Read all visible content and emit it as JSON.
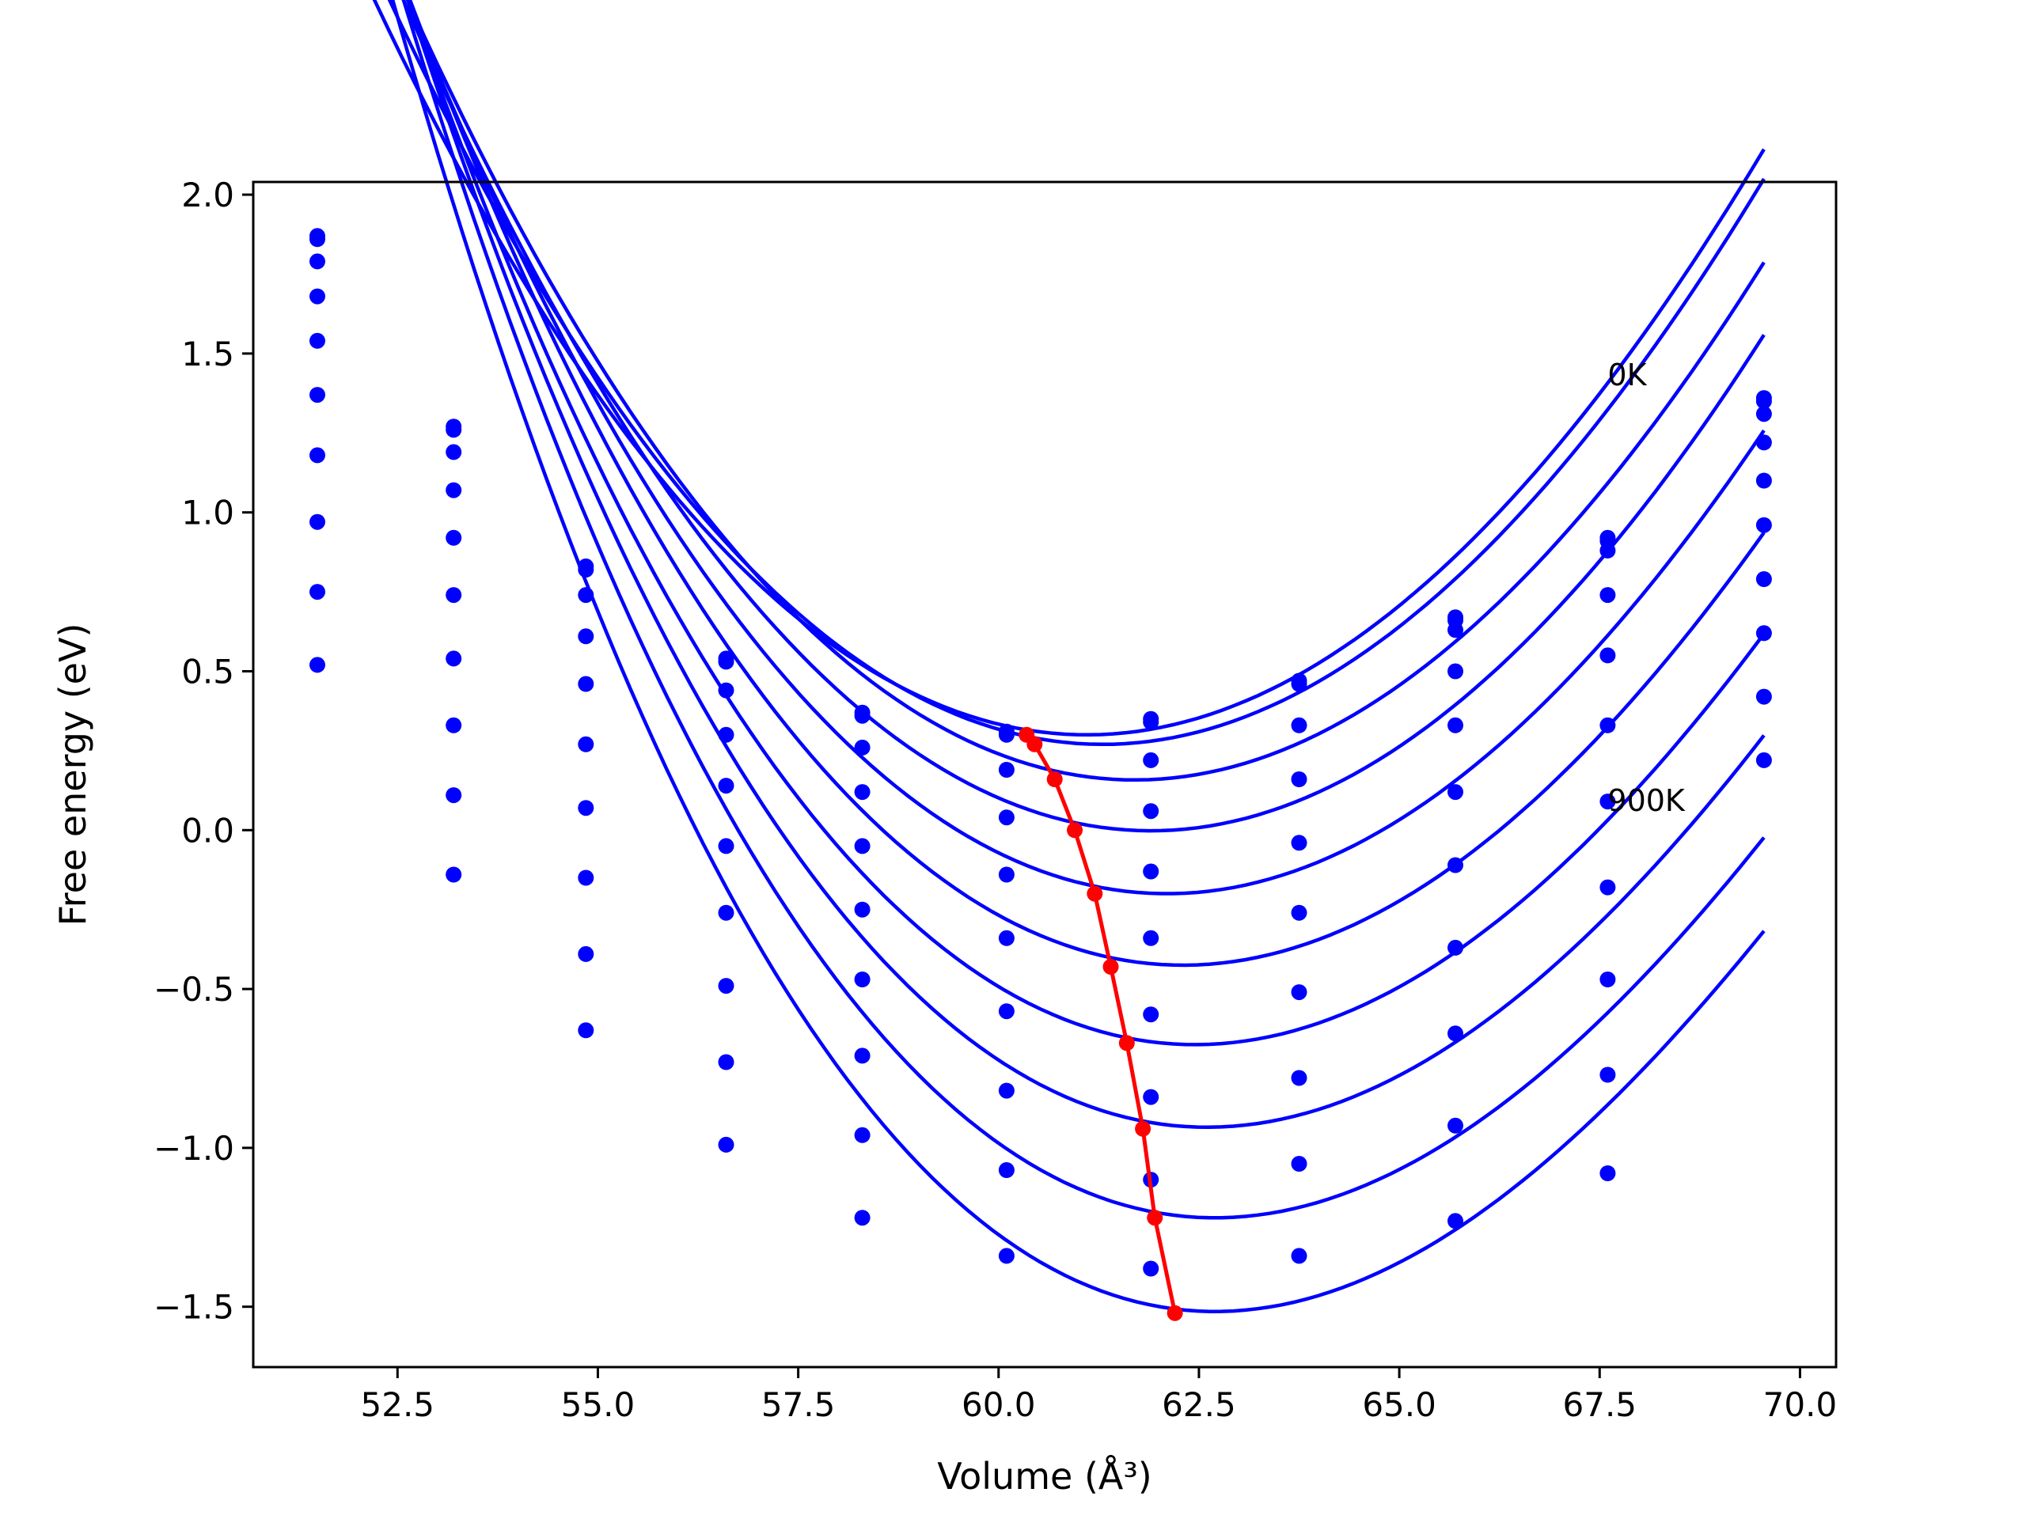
{
  "chart_data": {
    "type": "scatter",
    "title": "",
    "xlabel": "Volume (Å³)",
    "ylabel": "Free energy (eV)",
    "xlim": [
      50.7,
      70.45
    ],
    "ylim": [
      -1.69,
      2.04
    ],
    "xticks": [
      "52.5",
      "55.0",
      "57.5",
      "60.0",
      "62.5",
      "65.0",
      "67.5",
      "70.0"
    ],
    "yticks": [
      "−1.5",
      "−1.0",
      "−0.5",
      "0.0",
      "0.5",
      "1.0",
      "1.5",
      "2.0"
    ],
    "grid": false,
    "annotations": [
      {
        "text": "0K",
        "x": 67.6,
        "y": 1.43
      },
      {
        "text": "900K",
        "x": 67.6,
        "y": 0.09
      }
    ],
    "volumes": [
      51.5,
      53.2,
      54.85,
      56.6,
      58.3,
      60.1,
      61.9,
      63.75,
      65.7,
      67.6,
      69.55
    ],
    "series": [
      {
        "values": [
          1.87,
          1.27,
          0.83,
          0.54,
          0.37,
          0.31,
          0.35,
          0.47,
          0.67,
          0.92,
          1.36
        ]
      },
      {
        "values": [
          1.86,
          1.26,
          0.82,
          0.53,
          0.36,
          0.3,
          0.34,
          0.46,
          0.66,
          0.91,
          1.35
        ]
      },
      {
        "values": [
          1.79,
          1.19,
          0.74,
          0.44,
          0.26,
          0.19,
          0.22,
          0.33,
          0.63,
          0.88,
          1.31
        ]
      },
      {
        "values": [
          1.68,
          1.07,
          0.61,
          0.3,
          0.12,
          0.04,
          0.06,
          0.16,
          0.5,
          0.74,
          1.22
        ]
      },
      {
        "values": [
          1.54,
          0.92,
          0.46,
          0.14,
          -0.05,
          -0.14,
          -0.13,
          -0.04,
          0.33,
          0.55,
          1.1
        ]
      },
      {
        "values": [
          1.37,
          0.74,
          0.27,
          -0.05,
          -0.25,
          -0.34,
          -0.34,
          -0.26,
          0.12,
          0.33,
          0.96
        ]
      },
      {
        "values": [
          1.18,
          0.54,
          0.07,
          -0.26,
          -0.47,
          -0.57,
          -0.58,
          -0.51,
          -0.11,
          0.09,
          0.79
        ]
      },
      {
        "values": [
          0.97,
          0.33,
          -0.15,
          -0.49,
          -0.71,
          -0.82,
          -0.84,
          -0.78,
          -0.37,
          -0.18,
          0.62
        ]
      },
      {
        "values": [
          0.75,
          0.11,
          -0.39,
          -0.73,
          -0.96,
          -1.07,
          -1.1,
          -1.05,
          -0.64,
          -0.47,
          0.42
        ]
      },
      {
        "values": [
          0.52,
          -0.14,
          -0.63,
          -0.99,
          -1.22,
          -1.34,
          -1.38,
          -1.34,
          -0.93,
          -0.77,
          0.22
        ]
      },
      {
        "values": [
          null,
          null,
          null,
          null,
          null,
          null,
          null,
          null,
          -1.23,
          -1.08,
          null
        ]
      }
    ],
    "fits": [
      {
        "vmin": 61.1,
        "fmin": 0.3,
        "a": 0.0275,
        "b": 0.0002
      },
      {
        "vmin": 61.3,
        "fmin": 0.27,
        "a": 0.0278,
        "b": 0.0002
      },
      {
        "vmin": 61.7,
        "fmin": 0.158,
        "a": 0.028,
        "b": 0.0002
      },
      {
        "vmin": 61.9,
        "fmin": -0.002,
        "a": 0.0282,
        "b": 0.0002
      },
      {
        "vmin": 62.1,
        "fmin": -0.2,
        "a": 0.0285,
        "b": 0.0003
      },
      {
        "vmin": 62.3,
        "fmin": -0.425,
        "a": 0.0288,
        "b": 0.0004
      },
      {
        "vmin": 62.45,
        "fmin": -0.675,
        "a": 0.0292,
        "b": 0.0005
      },
      {
        "vmin": 62.6,
        "fmin": -0.935,
        "a": 0.0297,
        "b": 0.0006
      },
      {
        "vmin": 62.7,
        "fmin": -1.22,
        "a": 0.0303,
        "b": 0.0007
      },
      {
        "vmin": 62.7,
        "fmin": -1.515,
        "a": 0.031,
        "b": 0.0008
      }
    ],
    "minima_path": {
      "x": [
        60.35,
        60.45,
        60.7,
        60.95,
        61.2,
        61.4,
        61.6,
        61.8,
        61.95,
        62.2
      ],
      "y": [
        0.3,
        0.27,
        0.16,
        0.0,
        -0.2,
        -0.43,
        -0.67,
        -0.94,
        -1.22,
        -1.52
      ]
    },
    "colors": {
      "fits": "#0000ff",
      "points": "#0000ff",
      "minima": "#ff0000",
      "axes": "#000000"
    }
  }
}
